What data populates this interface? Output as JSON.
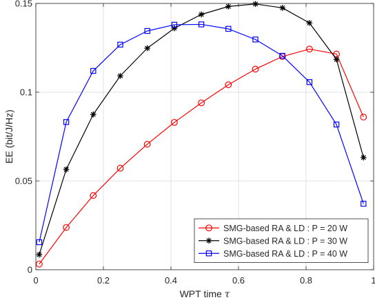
{
  "chart_data": {
    "type": "line",
    "xlabel": "WPT time",
    "xlabel_symbol": "τ",
    "ylabel": "EE (bit/J/Hz)",
    "xlim": [
      0,
      1
    ],
    "ylim": [
      0,
      0.15
    ],
    "xticks": [
      0,
      0.2,
      0.4,
      0.6,
      0.8,
      1
    ],
    "xtick_labels": [
      "0",
      "0.2",
      "0.4",
      "0.6",
      "0.8",
      "1"
    ],
    "yticks": [
      0,
      0.05,
      0.1,
      0.15
    ],
    "ytick_labels": [
      "0",
      "0.05",
      "0.1",
      "0.15"
    ],
    "grid": true,
    "legend_position": "bottom-right",
    "x": [
      0.01,
      0.09,
      0.17,
      0.25,
      0.33,
      0.41,
      0.49,
      0.57,
      0.65,
      0.73,
      0.81,
      0.89,
      0.97
    ],
    "series": [
      {
        "name": "SMG-based RA & LD : P = 20 W",
        "color": "#ff0000",
        "marker": "circle",
        "values": [
          0.0032,
          0.0238,
          0.0418,
          0.0572,
          0.0707,
          0.083,
          0.094,
          0.1042,
          0.113,
          0.1201,
          0.1243,
          0.1215,
          0.086
        ]
      },
      {
        "name": "SMG-based RA & LD : P = 30 W",
        "color": "#000000",
        "marker": "asterisk",
        "values": [
          0.0085,
          0.0565,
          0.0875,
          0.1092,
          0.1248,
          0.136,
          0.1438,
          0.1483,
          0.1497,
          0.1475,
          0.139,
          0.1185,
          0.0632
        ]
      },
      {
        "name": "SMG-based RA & LD : P = 40 W",
        "color": "#0000ff",
        "marker": "square",
        "values": [
          0.0155,
          0.0832,
          0.112,
          0.1268,
          0.1345,
          0.138,
          0.1382,
          0.1357,
          0.1297,
          0.1205,
          0.1057,
          0.0818,
          0.0372
        ]
      }
    ]
  }
}
